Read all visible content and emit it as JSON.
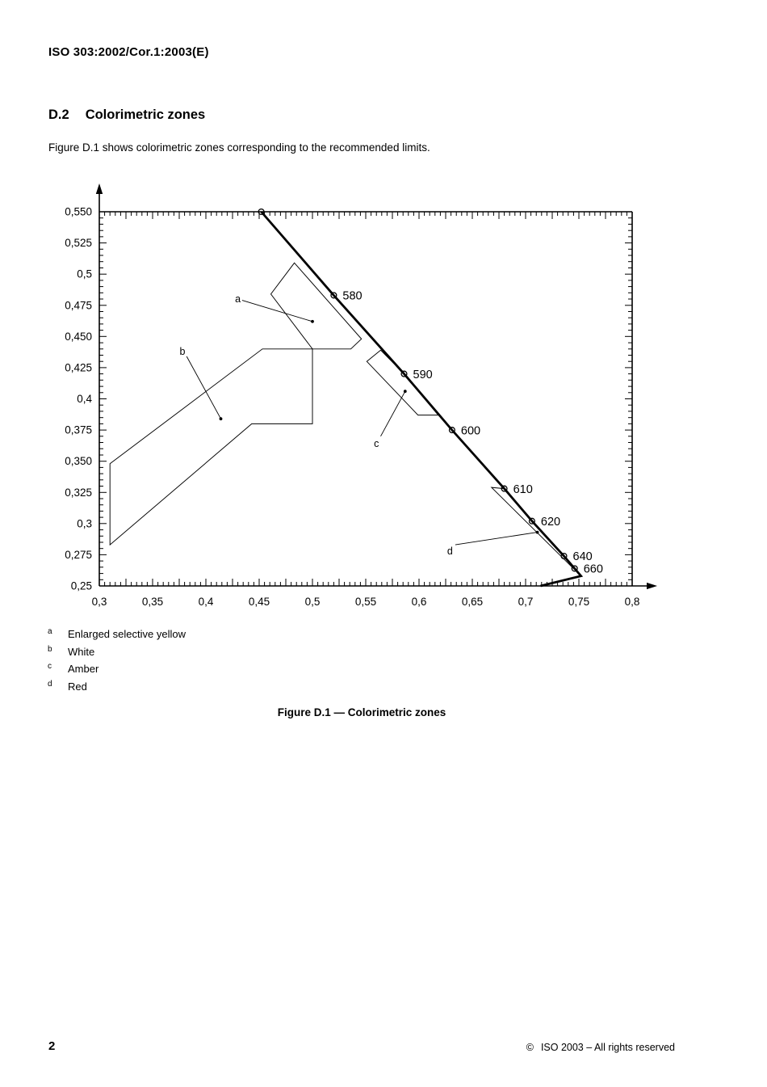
{
  "page": {
    "header": "ISO 303:2002/Cor.1:2003(E)",
    "section_number": "D.2",
    "section_title": "Colorimetric zones",
    "intro_text": "Figure D.1 shows colorimetric zones corresponding to the recommended limits.",
    "figure_caption": "Figure D.1 — Colorimetric zones",
    "page_number": "2",
    "copyright_symbol": "©",
    "copyright_text": "ISO 2003 – All rights reserved"
  },
  "legend": [
    {
      "key": "a",
      "label": "Enlarged selective yellow"
    },
    {
      "key": "b",
      "label": "White"
    },
    {
      "key": "c",
      "label": "Amber"
    },
    {
      "key": "d",
      "label": "Red"
    }
  ],
  "chart_data": {
    "type": "line",
    "title": "Colorimetric zones on CIE chromaticity diagram",
    "xlabel": "",
    "ylabel": "",
    "xlim": [
      0.3,
      0.8
    ],
    "ylim": [
      0.25,
      0.55
    ],
    "grid": false,
    "legend_position": "below-left",
    "minor_tick_step": 0.005,
    "medium_tick_step": 0.025,
    "x_ticks": [
      {
        "v": 0.3,
        "label": "0,3"
      },
      {
        "v": 0.35,
        "label": "0,35"
      },
      {
        "v": 0.4,
        "label": "0,4"
      },
      {
        "v": 0.45,
        "label": "0,45"
      },
      {
        "v": 0.5,
        "label": "0,5"
      },
      {
        "v": 0.55,
        "label": "0,55"
      },
      {
        "v": 0.6,
        "label": "0,6"
      },
      {
        "v": 0.65,
        "label": "0,65"
      },
      {
        "v": 0.7,
        "label": "0,7"
      },
      {
        "v": 0.75,
        "label": "0,75"
      },
      {
        "v": 0.8,
        "label": "0,8"
      }
    ],
    "y_ticks": [
      {
        "v": 0.25,
        "label": "0,25"
      },
      {
        "v": 0.275,
        "label": "0,275"
      },
      {
        "v": 0.3,
        "label": "0,3"
      },
      {
        "v": 0.325,
        "label": "0,325"
      },
      {
        "v": 0.35,
        "label": "0,350"
      },
      {
        "v": 0.375,
        "label": "0,375"
      },
      {
        "v": 0.4,
        "label": "0,4"
      },
      {
        "v": 0.425,
        "label": "0,425"
      },
      {
        "v": 0.45,
        "label": "0,450"
      },
      {
        "v": 0.475,
        "label": "0,475"
      },
      {
        "v": 0.5,
        "label": "0,5"
      },
      {
        "v": 0.525,
        "label": "0,525"
      },
      {
        "v": 0.55,
        "label": "0,550"
      }
    ],
    "spectral_locus": {
      "points": [
        [
          0.452,
          0.55
        ],
        [
          0.52,
          0.483
        ],
        [
          0.586,
          0.42
        ],
        [
          0.631,
          0.375
        ],
        [
          0.68,
          0.328
        ],
        [
          0.706,
          0.302
        ],
        [
          0.736,
          0.274
        ],
        [
          0.746,
          0.264
        ],
        [
          0.752,
          0.258
        ],
        [
          0.714,
          0.25
        ]
      ],
      "wavelength_markers": [
        {
          "wavelength": "",
          "x": 0.452,
          "y": 0.55
        },
        {
          "wavelength": "580",
          "x": 0.52,
          "y": 0.483
        },
        {
          "wavelength": "590",
          "x": 0.586,
          "y": 0.42
        },
        {
          "wavelength": "600",
          "x": 0.631,
          "y": 0.375
        },
        {
          "wavelength": "610",
          "x": 0.68,
          "y": 0.328
        },
        {
          "wavelength": "620",
          "x": 0.706,
          "y": 0.302
        },
        {
          "wavelength": "640",
          "x": 0.736,
          "y": 0.274
        },
        {
          "wavelength": "660",
          "x": 0.746,
          "y": 0.264
        }
      ]
    },
    "zones": [
      {
        "id": "a",
        "name": "Enlarged selective yellow",
        "polygon": [
          [
            0.483,
            0.509
          ],
          [
            0.546,
            0.448
          ],
          [
            0.536,
            0.44
          ],
          [
            0.5,
            0.44
          ],
          [
            0.461,
            0.484
          ]
        ]
      },
      {
        "id": "b",
        "name": "White",
        "polygon": [
          [
            0.31,
            0.348
          ],
          [
            0.453,
            0.44
          ],
          [
            0.5,
            0.44
          ],
          [
            0.5,
            0.38
          ],
          [
            0.443,
            0.38
          ],
          [
            0.31,
            0.283
          ]
        ]
      },
      {
        "id": "c",
        "name": "Amber",
        "polygon": [
          [
            0.551,
            0.43
          ],
          [
            0.564,
            0.439
          ],
          [
            0.586,
            0.42
          ],
          [
            0.618,
            0.387
          ],
          [
            0.599,
            0.387
          ]
        ]
      },
      {
        "id": "d",
        "name": "Red",
        "polygon": [
          [
            0.668,
            0.329
          ],
          [
            0.68,
            0.328
          ],
          [
            0.706,
            0.302
          ],
          [
            0.736,
            0.274
          ],
          [
            0.746,
            0.264
          ],
          [
            0.752,
            0.258
          ]
        ]
      }
    ],
    "zone_labels": [
      {
        "label": "a",
        "x": 0.43,
        "y": 0.48,
        "line": [
          [
            0.434,
            0.479
          ],
          [
            0.5,
            0.462
          ]
        ],
        "dot": [
          0.5,
          0.462
        ]
      },
      {
        "label": "b",
        "x": 0.378,
        "y": 0.438,
        "line": [
          [
            0.382,
            0.434
          ],
          [
            0.414,
            0.384
          ]
        ],
        "dot": [
          0.414,
          0.384
        ]
      },
      {
        "label": "c",
        "x": 0.56,
        "y": 0.364,
        "line": [
          [
            0.564,
            0.37
          ],
          [
            0.587,
            0.406
          ]
        ],
        "dot": [
          0.587,
          0.406
        ]
      },
      {
        "label": "d",
        "x": 0.629,
        "y": 0.278,
        "line": [
          [
            0.634,
            0.283
          ],
          [
            0.711,
            0.293
          ]
        ],
        "dot": [
          0.711,
          0.293
        ]
      }
    ]
  }
}
